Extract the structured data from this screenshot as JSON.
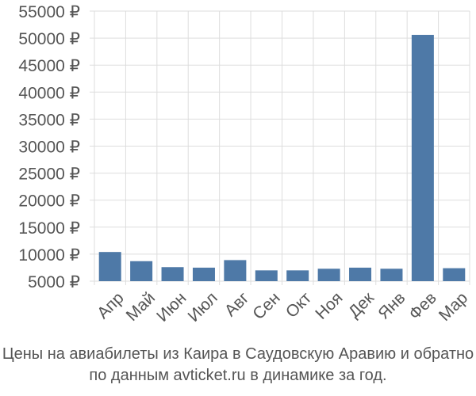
{
  "chart_data": {
    "type": "bar",
    "categories": [
      "Апр",
      "Май",
      "Июн",
      "Июл",
      "Авг",
      "Сен",
      "Окт",
      "Ноя",
      "Дек",
      "Янв",
      "Фев",
      "Мар"
    ],
    "values": [
      10400,
      8700,
      7600,
      7500,
      8900,
      7000,
      7000,
      7300,
      7500,
      7300,
      50600,
      7400
    ],
    "ylim": [
      5000,
      55000
    ],
    "yticks": [
      5000,
      10000,
      15000,
      20000,
      25000,
      30000,
      35000,
      40000,
      45000,
      50000,
      55000
    ],
    "ytick_suffix": " ₽",
    "grid": true,
    "bar_color": "#4e79a7"
  },
  "caption": {
    "line1": "Цены на авиабилеты из Каира в Саудовскую Аравию и обратно",
    "line2": "по данным avticket.ru в динамике за год."
  }
}
